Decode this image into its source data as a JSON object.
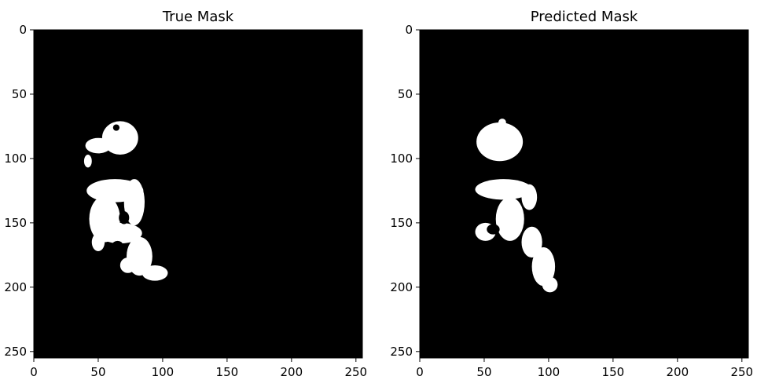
{
  "chart_data": [
    {
      "type": "heatmap",
      "title": "True Mask",
      "xlim": [
        0,
        255
      ],
      "ylim": [
        255,
        0
      ],
      "xticks": [
        0,
        50,
        100,
        150,
        200,
        250
      ],
      "yticks": [
        0,
        50,
        100,
        150,
        200,
        250
      ],
      "grid": false,
      "colors": {
        "background": "#000000",
        "mask": "#ffffff"
      },
      "mask_regions": [
        {
          "shape": "blob",
          "cx": 67,
          "cy": 84,
          "rx": 14,
          "ry": 13
        },
        {
          "shape": "blob",
          "cx": 50,
          "cy": 90,
          "rx": 10,
          "ry": 6
        },
        {
          "shape": "blob",
          "cx": 42,
          "cy": 102,
          "rx": 3,
          "ry": 5
        },
        {
          "shape": "blob",
          "cx": 63,
          "cy": 125,
          "rx": 22,
          "ry": 9
        },
        {
          "shape": "blob",
          "cx": 78,
          "cy": 134,
          "rx": 8,
          "ry": 18
        },
        {
          "shape": "blob",
          "cx": 55,
          "cy": 147,
          "rx": 12,
          "ry": 18
        },
        {
          "shape": "blob",
          "cx": 67,
          "cy": 158,
          "rx": 17,
          "ry": 8
        },
        {
          "shape": "blob",
          "cx": 82,
          "cy": 176,
          "rx": 10,
          "ry": 15
        },
        {
          "shape": "blob",
          "cx": 94,
          "cy": 189,
          "rx": 10,
          "ry": 6
        },
        {
          "shape": "blob",
          "cx": 73,
          "cy": 183,
          "rx": 6,
          "ry": 6
        },
        {
          "shape": "blob",
          "cx": 50,
          "cy": 165,
          "rx": 5,
          "ry": 7
        }
      ],
      "holes": [
        {
          "cx": 64,
          "cy": 76,
          "rx": 2.5,
          "ry": 2.5
        },
        {
          "cx": 70,
          "cy": 146,
          "rx": 4,
          "ry": 5
        },
        {
          "cx": 65,
          "cy": 167,
          "rx": 4,
          "ry": 3
        }
      ]
    },
    {
      "type": "heatmap",
      "title": "Predicted Mask",
      "xlim": [
        0,
        255
      ],
      "ylim": [
        255,
        0
      ],
      "xticks": [
        0,
        50,
        100,
        150,
        200,
        250
      ],
      "yticks": [
        0,
        50,
        100,
        150,
        200,
        250
      ],
      "grid": false,
      "colors": {
        "background": "#000000",
        "mask": "#ffffff"
      },
      "mask_regions": [
        {
          "shape": "blob",
          "cx": 62,
          "cy": 87,
          "rx": 18,
          "ry": 15
        },
        {
          "shape": "blob",
          "cx": 64,
          "cy": 72,
          "rx": 3,
          "ry": 3
        },
        {
          "shape": "blob",
          "cx": 65,
          "cy": 124,
          "rx": 22,
          "ry": 8
        },
        {
          "shape": "blob",
          "cx": 85,
          "cy": 130,
          "rx": 6,
          "ry": 10
        },
        {
          "shape": "blob",
          "cx": 70,
          "cy": 147,
          "rx": 11,
          "ry": 17
        },
        {
          "shape": "blob",
          "cx": 51,
          "cy": 157,
          "rx": 8,
          "ry": 7
        },
        {
          "shape": "blob",
          "cx": 87,
          "cy": 165,
          "rx": 8,
          "ry": 12
        },
        {
          "shape": "blob",
          "cx": 96,
          "cy": 184,
          "rx": 9,
          "ry": 15
        },
        {
          "shape": "blob",
          "cx": 101,
          "cy": 198,
          "rx": 6,
          "ry": 6
        }
      ],
      "holes": [
        {
          "cx": 57,
          "cy": 155,
          "rx": 5,
          "ry": 4
        },
        {
          "cx": 55,
          "cy": 136,
          "rx": 3,
          "ry": 3
        }
      ]
    }
  ]
}
